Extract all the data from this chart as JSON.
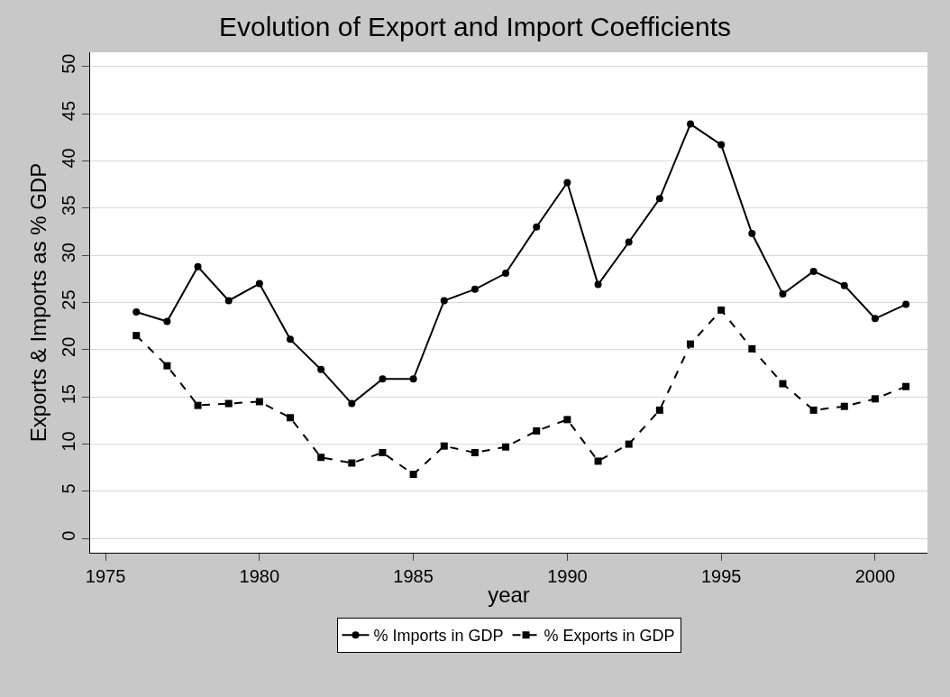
{
  "chart_data": {
    "type": "line",
    "title": "Evolution of Export and Import Coefficients",
    "xlabel": "year",
    "ylabel": "Exports & Imports as % GDP",
    "x": [
      1976,
      1977,
      1978,
      1979,
      1980,
      1981,
      1982,
      1983,
      1984,
      1985,
      1986,
      1987,
      1988,
      1989,
      1990,
      1991,
      1992,
      1993,
      1994,
      1995,
      1996,
      1997,
      1998,
      1999,
      2000,
      2001
    ],
    "series": [
      {
        "name": "% Imports in GDP",
        "color": "#000000",
        "marker": "circle",
        "line_style": "solid",
        "values": [
          24.0,
          23.0,
          28.8,
          25.2,
          27.0,
          21.1,
          17.9,
          14.3,
          16.9,
          16.9,
          25.2,
          26.4,
          28.1,
          33.0,
          37.7,
          26.9,
          31.4,
          36.0,
          43.9,
          41.7,
          32.3,
          25.9,
          28.3,
          26.8,
          23.3,
          24.8
        ]
      },
      {
        "name": "% Exports in GDP",
        "color": "#000000",
        "marker": "square",
        "line_style": "dashed",
        "values": [
          21.5,
          18.3,
          14.1,
          14.3,
          14.5,
          12.8,
          8.6,
          8.0,
          9.1,
          6.8,
          9.8,
          9.1,
          9.7,
          11.4,
          12.6,
          8.2,
          10.0,
          13.6,
          20.6,
          24.2,
          20.1,
          16.4,
          13.6,
          14.0,
          14.8,
          16.1
        ]
      }
    ],
    "xlim": [
      1974.5,
      2001.7
    ],
    "xticks": [
      1975,
      1980,
      1985,
      1990,
      1995,
      2000
    ],
    "ylim": [
      -1.5,
      51.5
    ],
    "yticks": [
      0,
      5,
      10,
      15,
      20,
      25,
      30,
      35,
      40,
      45,
      50
    ],
    "grid": "y",
    "legend": "bottom"
  }
}
